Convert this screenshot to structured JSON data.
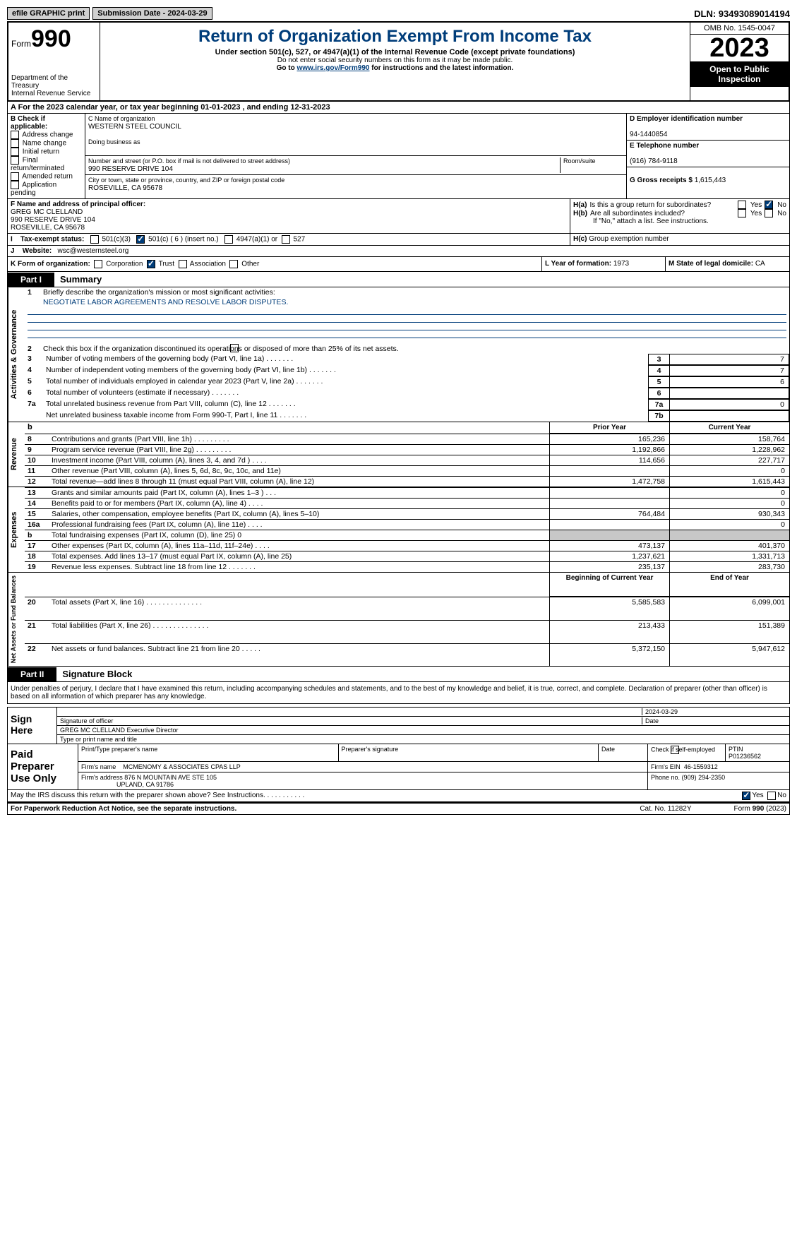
{
  "top": {
    "efile": "efile GRAPHIC print",
    "submission": "Submission Date - 2024-03-29",
    "dln": "DLN: 93493089014194"
  },
  "hdr": {
    "form": "Form",
    "num": "990",
    "title": "Return of Organization Exempt From Income Tax",
    "sub": "Under section 501(c), 527, or 4947(a)(1) of the Internal Revenue Code (except private foundations)",
    "note1": "Do not enter social security numbers on this form as it may be made public.",
    "note2": "Go to ",
    "link": "www.irs.gov/Form990",
    "note3": " for instructions and the latest information.",
    "dept": "Department of the Treasury",
    "irs": "Internal Revenue Service",
    "omb": "OMB No. 1545-0047",
    "year": "2023",
    "inspect": "Open to Public Inspection"
  },
  "a": {
    "text": "A For the 2023 calendar year, or tax year beginning 01-01-2023   , and ending 12-31-2023"
  },
  "b": {
    "label": "B Check if applicable:",
    "opts": [
      "Address change",
      "Name change",
      "Initial return",
      "Final return/terminated",
      "Amended return",
      "Application pending"
    ]
  },
  "c": {
    "nameLabel": "C Name of organization",
    "name": "WESTERN STEEL COUNCIL",
    "dba": "Doing business as",
    "addrLabel": "Number and street (or P.O. box if mail is not delivered to street address)",
    "room": "Room/suite",
    "addr": "990 RESERVE DRIVE 104",
    "cityLabel": "City or town, state or province, country, and ZIP or foreign postal code",
    "city": "ROSEVILLE, CA  95678"
  },
  "d": {
    "label": "D Employer identification number",
    "val": "94-1440854"
  },
  "e": {
    "label": "E Telephone number",
    "val": "(916) 784-9118"
  },
  "g": {
    "label": "G Gross receipts $",
    "val": "1,615,443"
  },
  "f": {
    "label": "F  Name and address of principal officer:",
    "name": "GREG MC CLELLAND",
    "addr1": "990 RESERVE DRIVE 104",
    "addr2": "ROSEVILLE, CA  95678"
  },
  "h": {
    "a": "Is this a group return for subordinates?",
    "b": "Are all subordinates included?",
    "note": "If \"No,\" attach a list. See instructions.",
    "c": "Group exemption number",
    "yes": "Yes",
    "no": "No"
  },
  "i": {
    "label": "Tax-exempt status:",
    "o1": "501(c)(3)",
    "o2": "501(c) ( 6 ) (insert no.)",
    "o3": "4947(a)(1) or",
    "o4": "527"
  },
  "j": {
    "label": "Website:",
    "val": "wsc@westernsteel.org"
  },
  "k": {
    "label": "K Form of organization:",
    "o1": "Corporation",
    "o2": "Trust",
    "o3": "Association",
    "o4": "Other"
  },
  "l": {
    "label": "L Year of formation:",
    "val": "1973"
  },
  "m": {
    "label": "M State of legal domicile:",
    "val": "CA"
  },
  "part1": {
    "tab": "Part I",
    "title": "Summary"
  },
  "gov": {
    "vlabel": "Activities & Governance",
    "l1a": "Briefly describe the organization's mission or most significant activities:",
    "l1b": "NEGOTIATE LABOR AGREEMENTS AND RESOLVE LABOR DISPUTES.",
    "l2": "Check this box       if the organization discontinued its operations or disposed of more than 25% of its net assets.",
    "rows": [
      {
        "n": "3",
        "t": "Number of voting members of the governing body (Part VI, line 1a)",
        "rn": "3",
        "v": "7"
      },
      {
        "n": "4",
        "t": "Number of independent voting members of the governing body (Part VI, line 1b)",
        "rn": "4",
        "v": "7"
      },
      {
        "n": "5",
        "t": "Total number of individuals employed in calendar year 2023 (Part V, line 2a)",
        "rn": "5",
        "v": "6"
      },
      {
        "n": "6",
        "t": "Total number of volunteers (estimate if necessary)",
        "rn": "6",
        "v": ""
      },
      {
        "n": "7a",
        "t": "Total unrelated business revenue from Part VIII, column (C), line 12",
        "rn": "7a",
        "v": "0"
      },
      {
        "n": "",
        "t": "Net unrelated business taxable income from Form 990-T, Part I, line 11",
        "rn": "7b",
        "v": ""
      }
    ]
  },
  "revhead": {
    "b": "b",
    "py": "Prior Year",
    "cy": "Current Year"
  },
  "revenue": {
    "vlabel": "Revenue",
    "rows": [
      {
        "n": "8",
        "t": "Contributions and grants (Part VIII, line 1h)   .    .    .    .    .    .    .    .    .",
        "py": "165,236",
        "cy": "158,764"
      },
      {
        "n": "9",
        "t": "Program service revenue (Part VIII, line 2g)   .    .    .    .    .    .    .    .    .",
        "py": "1,192,866",
        "cy": "1,228,962"
      },
      {
        "n": "10",
        "t": "Investment income (Part VIII, column (A), lines 3, 4, and 7d )   .    .    .    .",
        "py": "114,656",
        "cy": "227,717"
      },
      {
        "n": "11",
        "t": "Other revenue (Part VIII, column (A), lines 5, 6d, 8c, 9c, 10c, and 11e)",
        "py": "",
        "cy": "0"
      },
      {
        "n": "12",
        "t": "Total revenue—add lines 8 through 11 (must equal Part VIII, column (A), line 12)",
        "py": "1,472,758",
        "cy": "1,615,443"
      }
    ]
  },
  "expenses": {
    "vlabel": "Expenses",
    "rows": [
      {
        "n": "13",
        "t": "Grants and similar amounts paid (Part IX, column (A), lines 1–3 )   .    .    .",
        "py": "",
        "cy": "0"
      },
      {
        "n": "14",
        "t": "Benefits paid to or for members (Part IX, column (A), line 4)   .    .    .    .",
        "py": "",
        "cy": "0"
      },
      {
        "n": "15",
        "t": "Salaries, other compensation, employee benefits (Part IX, column (A), lines 5–10)",
        "py": "764,484",
        "cy": "930,343"
      },
      {
        "n": "16a",
        "t": "Professional fundraising fees (Part IX, column (A), line 11e)   .    .    .    .",
        "py": "",
        "cy": "0"
      },
      {
        "n": "b",
        "t": "Total fundraising expenses (Part IX, column (D), line 25) 0",
        "py": "GRAY",
        "cy": "GRAY"
      },
      {
        "n": "17",
        "t": "Other expenses (Part IX, column (A), lines 11a–11d, 11f–24e)   .    .    .    .",
        "py": "473,137",
        "cy": "401,370"
      },
      {
        "n": "18",
        "t": "Total expenses. Add lines 13–17 (must equal Part IX, column (A), line 25)",
        "py": "1,237,621",
        "cy": "1,331,713"
      },
      {
        "n": "19",
        "t": "Revenue less expenses. Subtract line 18 from line 12   .    .    .    .    .    .    .",
        "py": "235,137",
        "cy": "283,730"
      }
    ]
  },
  "nethead": {
    "py": "Beginning of Current Year",
    "cy": "End of Year"
  },
  "net": {
    "vlabel": "Net Assets or Fund Balances",
    "rows": [
      {
        "n": "20",
        "t": "Total assets (Part X, line 16)   .    .    .    .    .    .    .    .    .    .    .    .    .    .",
        "py": "5,585,583",
        "cy": "6,099,001"
      },
      {
        "n": "21",
        "t": "Total liabilities (Part X, line 26)  .    .    .    .    .    .    .    .    .    .    .    .    .    .",
        "py": "213,433",
        "cy": "151,389"
      },
      {
        "n": "22",
        "t": "Net assets or fund balances. Subtract line 21 from line 20   .    .    .    .    .",
        "py": "5,372,150",
        "cy": "5,947,612"
      }
    ]
  },
  "part2": {
    "tab": "Part II",
    "title": "Signature Block"
  },
  "sig": {
    "decl": "Under penalties of perjury, I declare that I have examined this return, including accompanying schedules and statements, and to the best of my knowledge and belief, it is true, correct, and complete. Declaration of preparer (other than officer) is based on all information of which preparer has any knowledge.",
    "here": "Sign Here",
    "date": "2024-03-29",
    "sigof": "Signature of officer",
    "dateL": "Date",
    "officer": "GREG MC CLELLAND  Executive Director",
    "typeL": "Type or print name and title"
  },
  "paid": {
    "label": "Paid Preparer Use Only",
    "h1": "Print/Type preparer's name",
    "h2": "Preparer's signature",
    "h3": "Date",
    "h4": "Check       if self-employed",
    "h5": "PTIN",
    "ptin": "P01236562",
    "firmL": "Firm's name",
    "firm": "MCMENOMY & ASSOCIATES CPAS LLP",
    "einL": "Firm's EIN",
    "ein": "46-1559312",
    "addrL": "Firm's address",
    "addr1": "876 N MOUNTAIN AVE STE 105",
    "addr2": "UPLAND, CA  91786",
    "phoneL": "Phone no.",
    "phone": "(909) 294-2350"
  },
  "discuss": {
    "q": "May the IRS discuss this return with the preparer shown above? See Instructions.    .     .     .     .     .     .     .     .     .     .",
    "yes": "Yes",
    "no": "No"
  },
  "foot": {
    "pra": "For Paperwork Reduction Act Notice, see the separate instructions.",
    "cat": "Cat. No. 11282Y",
    "form": "Form 990 (2023)"
  }
}
